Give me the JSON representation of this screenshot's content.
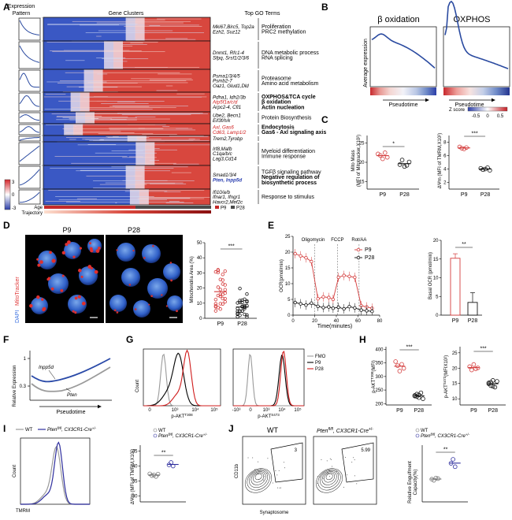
{
  "panelA": {
    "letter": "A",
    "expr_title_1": "Expression",
    "expr_title_2": "Pattern",
    "clusters_title": "Gene Clusters",
    "go_title": "Top GO Terms",
    "colorbar_max": "3",
    "colorbar_zero": "0",
    "colorbar_min": "-3",
    "age_label": "Age",
    "trajectory_label": "Trajectory",
    "legend_p9": "P9",
    "legend_p28": "P28",
    "clusters": [
      {
        "genes": [
          "Mki67,Birc5, Top2a",
          "Ezh2, Suz12"
        ],
        "terms": [
          "Proliferation",
          "PRC2 methylation"
        ]
      },
      {
        "genes": [
          "Dnmt1, Rfc1-4",
          "Sfpq, Srsf1/2/3/6"
        ],
        "terms": [
          "DNA metabolic process",
          "RNA splicing"
        ]
      },
      {
        "genes": [
          "Psma1/3/4/5",
          "Psmb2-7",
          "Oaz1, Glud1,Dld"
        ],
        "terms": [
          "Proteasome",
          "Amino acid metabolism"
        ]
      },
      {
        "genes": [
          "Pdha1, Idh2/3b",
          "Atp5f1a/c/d",
          "Arpc2-4, Cfl1"
        ],
        "terms": [
          "OXPHOS&TCA cycle",
          "β oxidation",
          "Actin nucleation"
        ]
      },
      {
        "genes": [
          "Ube2, Becn1",
          "Eif3f/h/k"
        ],
        "terms": [
          "Protein Biosynthesis"
        ]
      },
      {
        "genes": [
          "Axl, Gas6",
          "Cd63, Lamp1/2"
        ],
        "terms": [
          "Endocytosis",
          "Gas6 - Axl signaling axis"
        ]
      },
      {
        "genes": [
          "Trem2,Tyrobp"
        ],
        "terms": []
      },
      {
        "genes": [
          "Irf8,Mafb",
          "C1qa/b/c",
          "Lag3,Cd14"
        ],
        "terms": [
          "Myeloid differentiation",
          "Immune response"
        ]
      },
      {
        "genes": [
          "Smad1/3/4",
          "Pten, Inpp5d"
        ],
        "terms": [
          "TGFβ signaling pathway",
          "Negative regulation of",
          "biosynthetic process"
        ]
      },
      {
        "genes": [
          "Ifi10/a/b",
          "Ifnar1, Ifngr1",
          "Havcr2,Mef2c"
        ],
        "terms": [
          "Response to stimulus"
        ]
      }
    ]
  },
  "panelB": {
    "letter": "B",
    "title1": "β oxidation",
    "title2": "OXPHOS",
    "ylabel": "Average expression",
    "xlabel": "Pseudotime",
    "zscore_label": "Z score",
    "zscore_ticks": [
      "-0.5",
      "0",
      "0.5"
    ]
  },
  "panelC": {
    "letter": "C",
    "sig1": "*",
    "sig2": "***",
    "ylabel1": "Mito Mass",
    "ylabel1b": "(MFI of Mitotracker,X10²)",
    "ylabel2": "ΔΨm (MFI of TMRM,X10²)",
    "yticks1": [
      "25",
      "20",
      "15"
    ],
    "yticks2": [
      "8",
      "6",
      "4",
      "2"
    ],
    "groups": [
      "P9",
      "P28"
    ]
  },
  "panelD": {
    "letter": "D",
    "img_p9": "P9",
    "img_p28": "P28",
    "stain_dapi": "DAPI",
    "stain_mito": "MitoTracker",
    "sig": "***",
    "ylabel": "Mitochondria Area (%)",
    "yticks": [
      "50",
      "40",
      "30",
      "20",
      "10",
      "0"
    ],
    "groups": [
      "P9",
      "P28"
    ]
  },
  "panelE": {
    "letter": "E",
    "ann1": "Oligomycin",
    "ann2": "FCCP",
    "ann3": "Rot/AA",
    "ylabel": "OCR(pmol/min)",
    "xlabel": "Time(minutes)",
    "yticks": [
      "25",
      "20",
      "15",
      "10",
      "5",
      "0"
    ],
    "xticks": [
      "0",
      "20",
      "40",
      "60",
      "80"
    ],
    "legend1": "P9",
    "legend2": "P28",
    "basal_ylabel": "Basal OCR (pmol/min)",
    "basal_yticks": [
      "20",
      "15",
      "10",
      "5",
      "0"
    ],
    "basal_sig": "**",
    "groups": [
      "P9",
      "P28"
    ]
  },
  "panelF": {
    "letter": "F",
    "ylabel": "Relative Expression",
    "ytick_top": "1",
    "ytick_bottom": "0.3",
    "xlabel": "Pseudotime",
    "line1": "Inpp5d",
    "line2": "Pten"
  },
  "panelG": {
    "letter": "G",
    "ylabel": "Count",
    "xlabel1": "p-AKT",
    "xlabel1_sup": "T308",
    "xlabel2": "p-AKT",
    "xlabel2_sup": "S473",
    "xticks1": [
      "0",
      "10³",
      "10⁴",
      "10⁵"
    ],
    "xticks2": [
      "-10³",
      "0",
      "10³",
      "10⁴",
      "10⁵"
    ],
    "legend": [
      "FMO",
      "P9",
      "P28"
    ],
    "colors": {
      "fmo": "#9a9a9a",
      "p9": "#000000",
      "p28": "#d01c1c"
    }
  },
  "panelH": {
    "letter": "H",
    "sig1": "***",
    "sig2": "***",
    "ylabel1": "p-AKT",
    "ylabel1_sup": "T308",
    "ylabel1_suffix": "(MFI)",
    "ylabel2": "p-AKT",
    "ylabel2_sup": "S473",
    "ylabel2_suffix": "(MFIX10²)",
    "yticks1": [
      "400",
      "350",
      "300",
      "250",
      "200"
    ],
    "yticks2": [
      "25",
      "20",
      "15",
      "10"
    ],
    "groups": [
      "P9",
      "P28"
    ]
  },
  "panelI": {
    "letter": "I",
    "legend_wt": "WT",
    "legend_ko": "Pten",
    "legend_ko_sup": "fl/fl",
    "legend_ko_rest": ", CX3CR1-Cre",
    "legend_ko_rest_sup": "+/-",
    "ylabel": "Count",
    "xlabel": "TMRM",
    "dot_legend_wt": "WT",
    "dot_ylabel": "ΔΨm (MFI of TMRM,X10²)",
    "dot_yticks": [
      "45",
      "40",
      "35",
      "30"
    ],
    "sig": "**"
  },
  "panelJ": {
    "letter": "J",
    "title_wt": "WT",
    "title_ko": "Pten",
    "title_ko_sup": "fl/fl",
    "title_ko_rest": ", CX3CR1-Cre",
    "title_ko_rest_sup": "+/-",
    "gate_wt": "3",
    "gate_ko": "5.99",
    "ylabel": "CD11b",
    "xlabel": "Synaptosome",
    "dot_legend_wt": "WT",
    "dot_ylabel": "Relative Engulfment",
    "dot_ylabel2": "Capacity(%)",
    "sig": "**"
  }
}
